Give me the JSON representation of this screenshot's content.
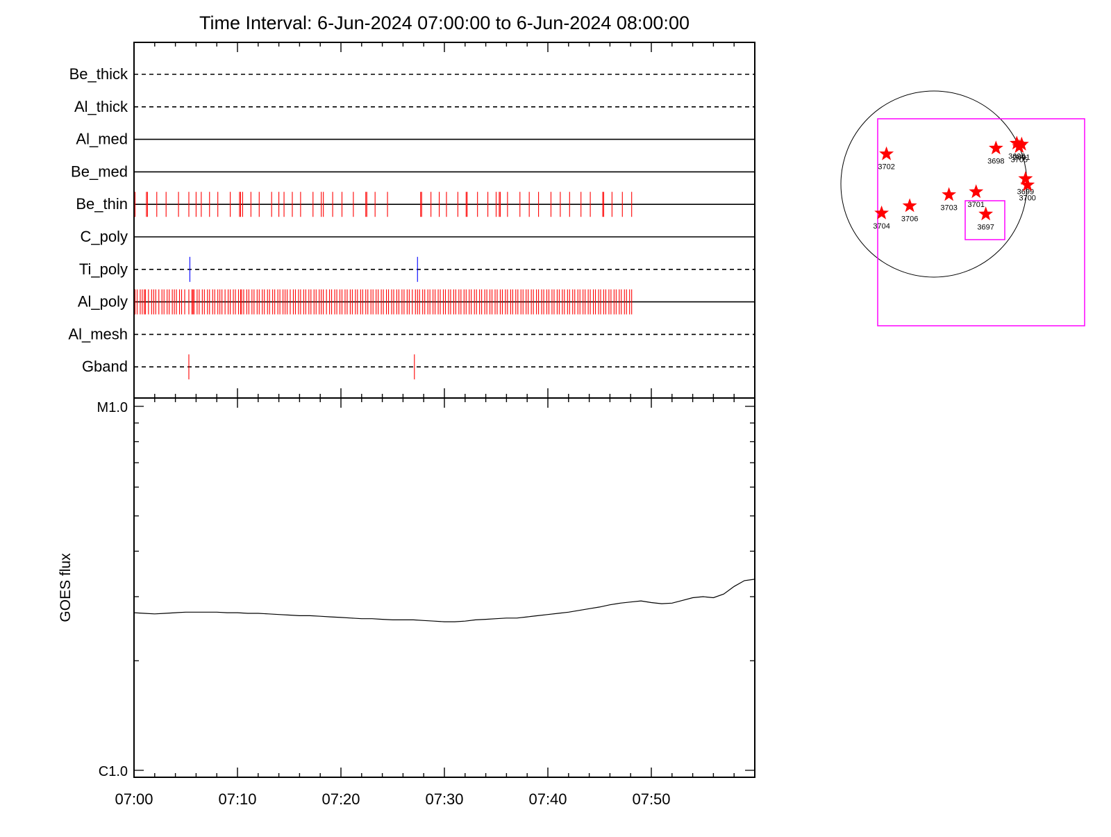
{
  "title": "Time Interval:  6-Jun-2024 07:00:00 to  6-Jun-2024 08:00:00",
  "colors": {
    "event": "#ff0000",
    "event_alt": "#0000ff",
    "box": "#ff00ff",
    "axis": "#000000"
  },
  "chart_data": [
    {
      "type": "timeline",
      "x_range_minutes": [
        0,
        60
      ],
      "x_ticks": [
        "07:00",
        "07:10",
        "07:20",
        "07:30",
        "07:40",
        "07:50"
      ],
      "rows": [
        {
          "label": "Be_thick",
          "style": "dashed",
          "events": []
        },
        {
          "label": "Al_thick",
          "style": "dashed",
          "events": []
        },
        {
          "label": "Al_med",
          "style": "solid",
          "events": []
        },
        {
          "label": "Be_med",
          "style": "solid",
          "events": []
        },
        {
          "label": "Be_thin",
          "style": "solid",
          "color": "#ff0000",
          "events": [
            0.1,
            1.2,
            1.3,
            2.2,
            3.1,
            4.3,
            5.3,
            6.0,
            6.5,
            7.3,
            8.1,
            9.3,
            10.2,
            10.3,
            10.5,
            11.3,
            12.1,
            13.3,
            14.0,
            14.5,
            15.3,
            16.1,
            17.3,
            18.1,
            18.3,
            19.2,
            20.1,
            21.2,
            22.4,
            22.5,
            23.3,
            24.5,
            27.7,
            27.8,
            28.7,
            29.5,
            30.2,
            31.3,
            32.1,
            32.2,
            33.2,
            34.2,
            35.0,
            35.3,
            35.4,
            36.1,
            37.3,
            38.2,
            39.1,
            40.3,
            41.2,
            42.1,
            43.2,
            44.1,
            45.3,
            45.4,
            46.2,
            47.2,
            48.1
          ]
        },
        {
          "label": "C_poly",
          "style": "solid",
          "events": []
        },
        {
          "label": "Ti_poly",
          "style": "dashed",
          "color": "#0000ff",
          "events": [
            5.4,
            27.4
          ]
        },
        {
          "label": "Al_poly",
          "style": "solid",
          "color": "#ff0000",
          "events": [
            0.1,
            0.3,
            0.6,
            0.8,
            1.0,
            1.1,
            1.4,
            1.7,
            1.9,
            2.1,
            2.4,
            2.7,
            2.9,
            3.2,
            3.4,
            3.7,
            3.9,
            4.1,
            4.4,
            4.6,
            4.9,
            5.3,
            5.6,
            5.7,
            5.8,
            6.1,
            6.3,
            6.6,
            6.8,
            7.1,
            7.3,
            7.6,
            7.8,
            8.1,
            8.3,
            8.5,
            8.8,
            9.1,
            9.3,
            9.6,
            9.8,
            10.1,
            10.3,
            10.4,
            10.6,
            10.9,
            11.1,
            11.4,
            11.6,
            11.9,
            12.1,
            12.4,
            12.6,
            12.9,
            13.1,
            13.4,
            13.6,
            13.9,
            14.1,
            14.4,
            14.6,
            14.8,
            15.1,
            15.4,
            15.6,
            15.9,
            16.1,
            16.4,
            16.6,
            16.9,
            17.1,
            17.4,
            17.6,
            17.9,
            18.1,
            18.3,
            18.6,
            18.9,
            19.1,
            19.4,
            19.6,
            19.9,
            20.1,
            20.4,
            20.6,
            20.9,
            21.1,
            21.4,
            21.6,
            21.9,
            22.1,
            22.4,
            22.6,
            22.9,
            23.1,
            23.4,
            23.6,
            23.9,
            24.1,
            24.4,
            24.6,
            24.9,
            25.1,
            25.4,
            25.6,
            25.9,
            26.1,
            26.4,
            26.6,
            26.9,
            27.2,
            27.4,
            27.6,
            27.9,
            28.1,
            28.4,
            28.6,
            28.9,
            29.1,
            29.4,
            29.6,
            29.9,
            30.1,
            30.4,
            30.6,
            30.9,
            31.1,
            31.4,
            31.6,
            31.9,
            32.1,
            32.4,
            32.6,
            32.9,
            33.1,
            33.4,
            33.6,
            33.9,
            34.1,
            34.4,
            34.6,
            34.9,
            35.1,
            35.4,
            35.6,
            35.9,
            36.1,
            36.4,
            36.6,
            36.9,
            37.1,
            37.4,
            37.6,
            37.9,
            38.1,
            38.4,
            38.6,
            38.9,
            39.1,
            39.4,
            39.6,
            39.9,
            40.1,
            40.4,
            40.6,
            40.9,
            41.1,
            41.4,
            41.6,
            41.9,
            42.1,
            42.4,
            42.6,
            42.9,
            43.1,
            43.4,
            43.6,
            43.9,
            44.1,
            44.4,
            44.6,
            44.9,
            45.1,
            45.4,
            45.6,
            45.9,
            46.1,
            46.4,
            46.6,
            46.9,
            47.1,
            47.4,
            47.6,
            47.9,
            48.1
          ]
        },
        {
          "label": "Al_mesh",
          "style": "dashed",
          "events": []
        },
        {
          "label": "Gband",
          "style": "dashed",
          "color": "#ff0000",
          "events": [
            5.3,
            27.1
          ]
        }
      ]
    },
    {
      "type": "line",
      "ylabel": "GOES flux",
      "yscale": "log",
      "ylim": [
        1e-06,
        1e-05
      ],
      "y_tick_labels": [
        "C1.0",
        "M1.0"
      ],
      "x_ticks": [
        "07:00",
        "07:10",
        "07:20",
        "07:30",
        "07:40",
        "07:50"
      ],
      "series": [
        {
          "x": [
            0,
            1,
            2,
            3,
            4,
            5,
            6,
            7,
            8,
            9,
            10,
            11,
            12,
            13,
            14,
            15,
            16,
            17,
            18,
            19,
            20,
            21,
            22,
            23,
            24,
            25,
            26,
            27,
            28,
            29,
            30,
            31,
            32,
            33,
            34,
            35,
            36,
            37,
            38,
            39,
            40,
            41,
            42,
            43,
            44,
            45,
            46,
            47,
            48,
            49,
            50,
            51,
            52,
            53,
            54,
            55,
            56,
            57,
            58,
            59,
            60
          ],
          "y": [
            2.71e-06,
            2.7e-06,
            2.69e-06,
            2.7e-06,
            2.71e-06,
            2.72e-06,
            2.72e-06,
            2.72e-06,
            2.72e-06,
            2.71e-06,
            2.71e-06,
            2.7e-06,
            2.7e-06,
            2.69e-06,
            2.68e-06,
            2.67e-06,
            2.66e-06,
            2.66e-06,
            2.65e-06,
            2.64e-06,
            2.63e-06,
            2.62e-06,
            2.61e-06,
            2.61e-06,
            2.6e-06,
            2.59e-06,
            2.59e-06,
            2.59e-06,
            2.58e-06,
            2.57e-06,
            2.56e-06,
            2.56e-06,
            2.57e-06,
            2.59e-06,
            2.6e-06,
            2.61e-06,
            2.62e-06,
            2.62e-06,
            2.64e-06,
            2.66e-06,
            2.68e-06,
            2.7e-06,
            2.72e-06,
            2.75e-06,
            2.78e-06,
            2.81e-06,
            2.85e-06,
            2.88e-06,
            2.9e-06,
            2.92e-06,
            2.89e-06,
            2.87e-06,
            2.88e-06,
            2.93e-06,
            2.98e-06,
            3e-06,
            2.98e-06,
            3.05e-06,
            3.2e-06,
            3.32e-06,
            3.35e-06
          ]
        }
      ]
    }
  ],
  "solar_map": {
    "regions": [
      {
        "label": "3702",
        "x": -490,
        "y": 310
      },
      {
        "label": "3698",
        "x": 640,
        "y": 370
      },
      {
        "label": "3696",
        "x": 855,
        "y": 420
      },
      {
        "label": "3691",
        "x": 905,
        "y": 410
      },
      {
        "label": "3705",
        "x": 880,
        "y": 385
      },
      {
        "label": "3699",
        "x": 945,
        "y": 55
      },
      {
        "label": "3700",
        "x": 965,
        "y": -10
      },
      {
        "label": "3701",
        "x": 435,
        "y": -80
      },
      {
        "label": "3703",
        "x": 155,
        "y": -110
      },
      {
        "label": "3706",
        "x": -250,
        "y": -225
      },
      {
        "label": "3704",
        "x": -540,
        "y": -300
      },
      {
        "label": "3697",
        "x": 535,
        "y": -310
      }
    ]
  }
}
